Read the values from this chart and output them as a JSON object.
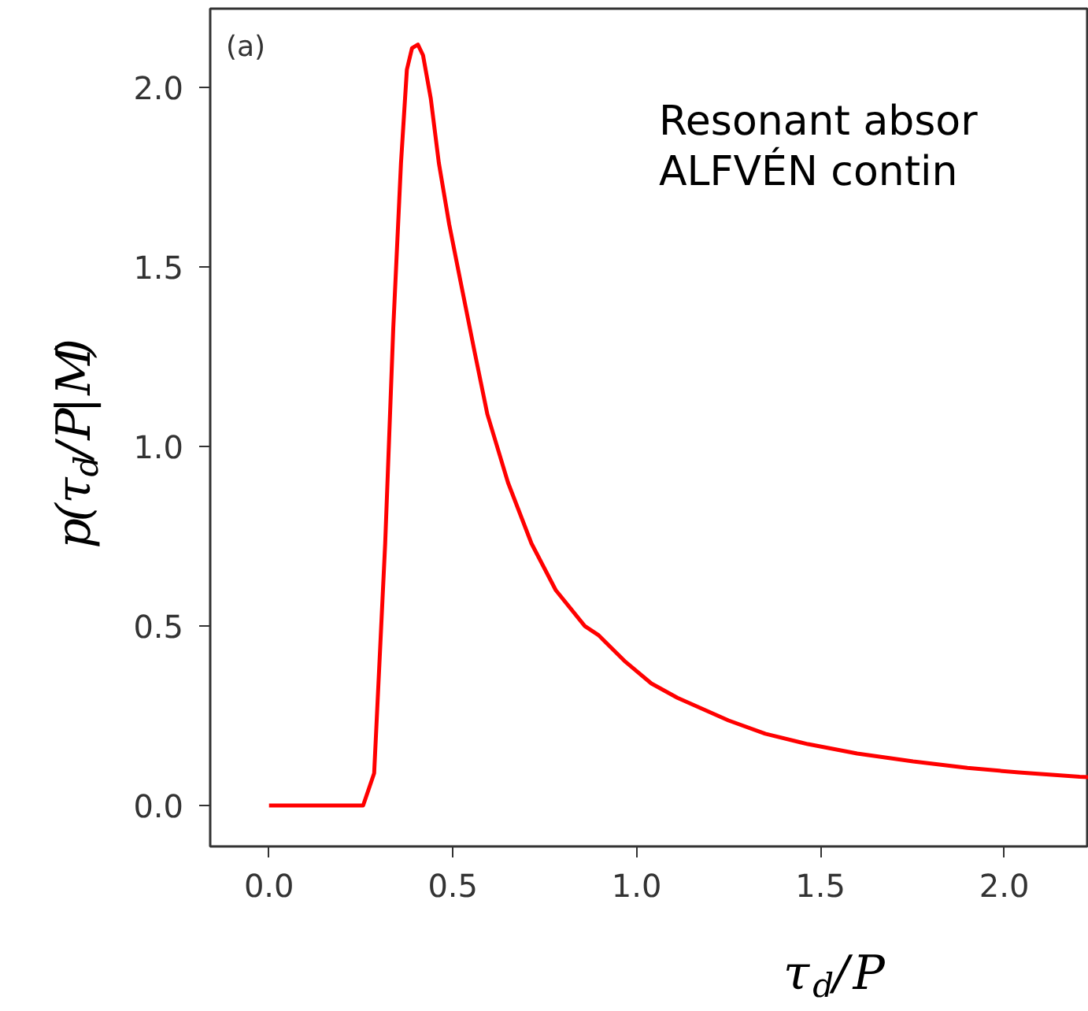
{
  "chart_data": {
    "type": "line",
    "xlabel": "τ$_{d}$/P",
    "ylabel": "p(τ$_{d}$/P|M)",
    "x": [
      0.0,
      0.1,
      0.2,
      0.256,
      0.286,
      0.316,
      0.338,
      0.359,
      0.375,
      0.389,
      0.405,
      0.419,
      0.44,
      0.462,
      0.49,
      0.521,
      0.56,
      0.594,
      0.65,
      0.714,
      0.78,
      0.859,
      0.897,
      0.97,
      1.04,
      1.111,
      1.25,
      1.35,
      1.466,
      1.6,
      1.752,
      1.9,
      2.04,
      2.205,
      2.23
    ],
    "series": [
      {
        "color": "#ff0000",
        "values": [
          0.0,
          0.0,
          0.0,
          0.0,
          0.09,
          0.73,
          1.33,
          1.79,
          2.05,
          2.11,
          2.12,
          2.09,
          1.97,
          1.79,
          1.62,
          1.46,
          1.26,
          1.09,
          0.9,
          0.73,
          0.6,
          0.5,
          0.474,
          0.4,
          0.34,
          0.3,
          0.237,
          0.2,
          0.171,
          0.145,
          0.123,
          0.105,
          0.092,
          0.08,
          0.079
        ]
      }
    ],
    "xlim": [
      -0.16,
      2.23
    ],
    "ylim": [
      -0.114,
      2.22
    ],
    "xticks": [
      {
        "value": 0,
        "label": "0.0"
      },
      0.5,
      {
        "value": 1,
        "label": "1.0"
      },
      1.5,
      {
        "value": 2,
        "label": "2.0"
      }
    ],
    "yticks": [
      {
        "value": 0,
        "label": "0.0"
      },
      0.5,
      {
        "value": 1,
        "label": "1.0"
      },
      1.5,
      {
        "value": 2,
        "label": "2.0"
      }
    ],
    "grid": false,
    "marker": "none",
    "line_style": "solid",
    "annotations": [
      "(a)",
      "Resonant absor",
      "ALFVÉN contin"
    ]
  }
}
